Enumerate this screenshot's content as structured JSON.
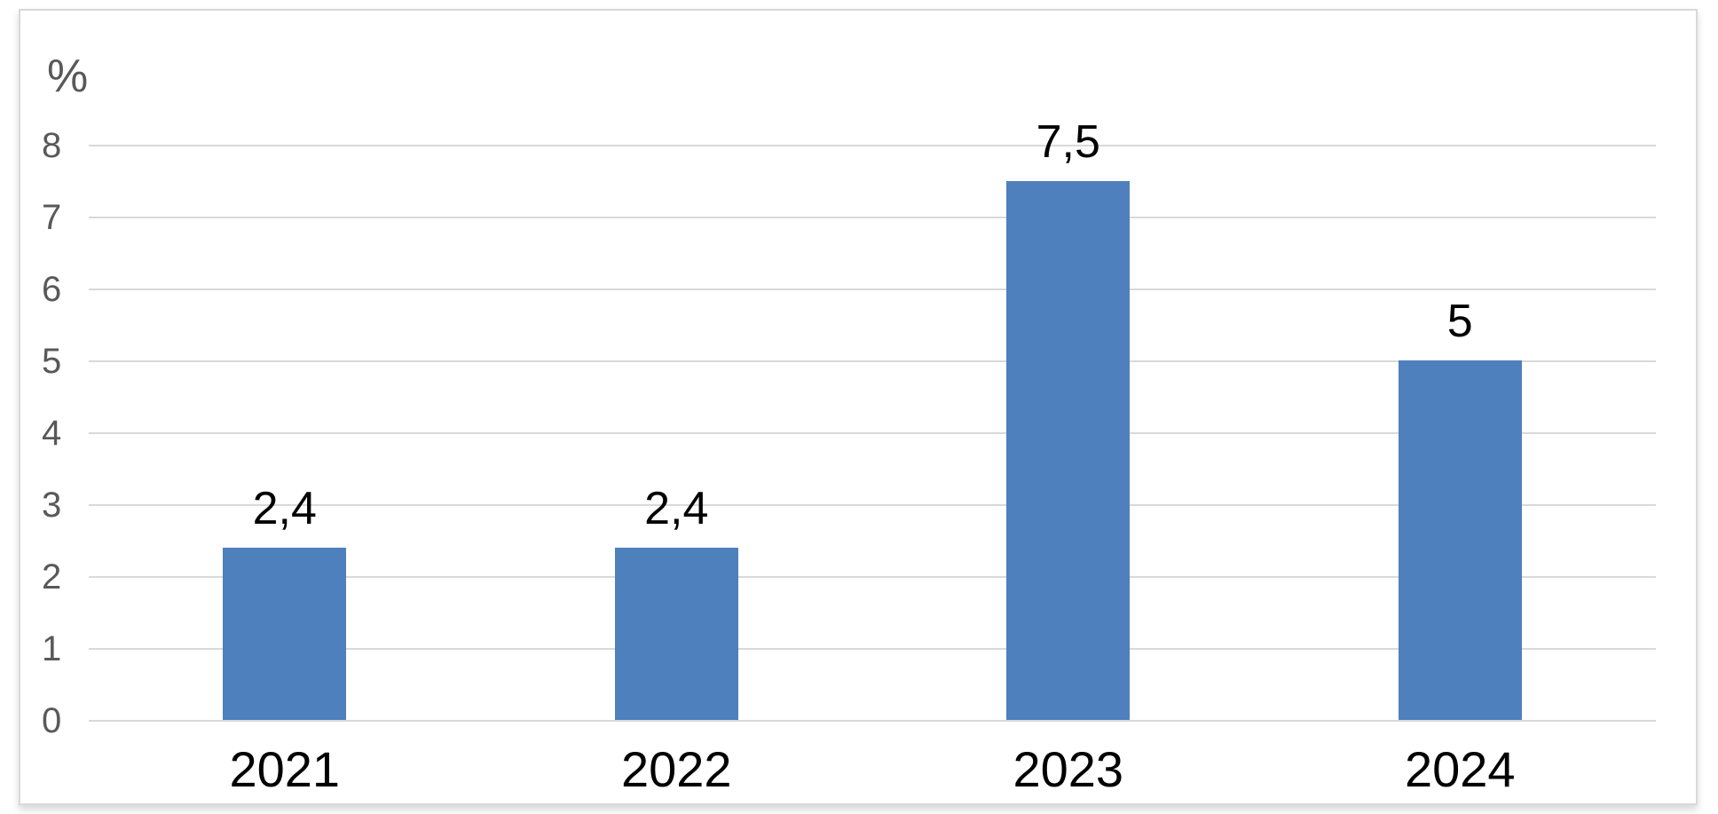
{
  "chart_data": {
    "type": "bar",
    "title": "",
    "xlabel": "",
    "ylabel": "%",
    "categories": [
      "2021",
      "2022",
      "2023",
      "2024"
    ],
    "values": [
      2.4,
      2.4,
      7.5,
      5
    ],
    "data_labels": [
      "2,4",
      "2,4",
      "7,5",
      "5"
    ],
    "decimal_separator": ",",
    "y_ticks": [
      0,
      1,
      2,
      3,
      4,
      5,
      6,
      7,
      8
    ],
    "ylim": [
      0,
      8
    ],
    "grid": "horizontal",
    "legend": "none",
    "colors": {
      "bar": "#4E80BD",
      "gridline": "#D9D9D9",
      "frame_border": "#D9D9D9",
      "axis_text": "#595959",
      "label_text": "#000000",
      "background": "#FFFFFF"
    }
  }
}
